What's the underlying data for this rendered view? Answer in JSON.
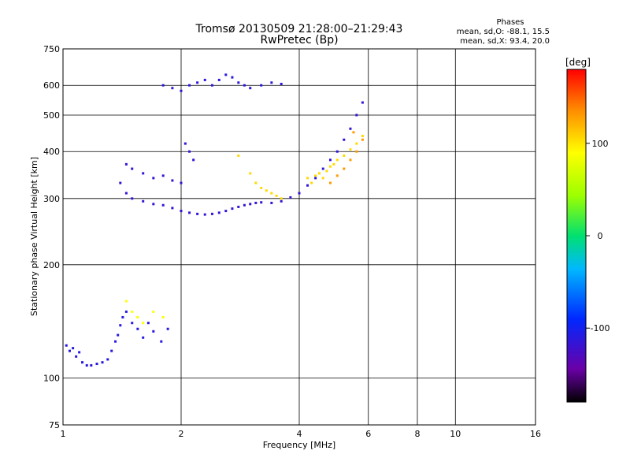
{
  "chart_data": {
    "type": "scatter",
    "title": "Tromsø 20130509 21:28:00–21:29:43",
    "subtitle": "RwPretec (Bp)",
    "xlabel": "Frequency [MHz]",
    "ylabel": "Stationary phase Virtual Height [km]",
    "x_scale": "log",
    "y_scale": "log",
    "xlim": [
      1,
      16
    ],
    "ylim": [
      75,
      750
    ],
    "x_ticks": [
      1,
      2,
      4,
      6,
      8,
      10,
      16
    ],
    "y_ticks": [
      75,
      100,
      200,
      300,
      400,
      500,
      600,
      750
    ],
    "grid": true,
    "legend_position": "top-right",
    "stats": {
      "heading": "Phases",
      "line_o": "mean, sd,O: -88.1, 15.5",
      "line_x": "mean, sd,X:  93.4, 20.0"
    },
    "colorbar": {
      "label": "[deg]",
      "range": [
        -180,
        180
      ],
      "ticks": [
        100,
        0,
        -100
      ]
    },
    "series": [
      {
        "color_value_deg": -110,
        "points": [
          [
            1.02,
            122
          ],
          [
            1.04,
            118
          ],
          [
            1.06,
            120
          ],
          [
            1.08,
            114
          ],
          [
            1.1,
            117
          ],
          [
            1.12,
            110
          ],
          [
            1.15,
            108
          ],
          [
            1.18,
            108
          ],
          [
            1.22,
            109
          ],
          [
            1.26,
            110
          ],
          [
            1.3,
            112
          ],
          [
            1.33,
            118
          ],
          [
            1.36,
            125
          ],
          [
            1.38,
            130
          ],
          [
            1.4,
            138
          ],
          [
            1.42,
            145
          ],
          [
            1.45,
            150
          ],
          [
            1.5,
            140
          ],
          [
            1.55,
            135
          ],
          [
            1.6,
            128
          ],
          [
            1.65,
            140
          ],
          [
            1.7,
            133
          ],
          [
            1.78,
            125
          ],
          [
            1.85,
            135
          ]
        ]
      },
      {
        "color_value_deg": -115,
        "points": [
          [
            1.4,
            330
          ],
          [
            1.45,
            310
          ],
          [
            1.5,
            300
          ],
          [
            1.6,
            295
          ],
          [
            1.7,
            290
          ],
          [
            1.8,
            288
          ],
          [
            1.9,
            283
          ],
          [
            2.0,
            278
          ],
          [
            2.1,
            275
          ],
          [
            2.2,
            273
          ],
          [
            2.3,
            272
          ],
          [
            2.4,
            273
          ],
          [
            2.5,
            275
          ],
          [
            2.6,
            278
          ],
          [
            2.7,
            282
          ],
          [
            2.8,
            285
          ],
          [
            2.9,
            288
          ],
          [
            3.0,
            290
          ],
          [
            3.1,
            292
          ],
          [
            3.2,
            293
          ],
          [
            3.4,
            292
          ],
          [
            3.6,
            295
          ],
          [
            3.8,
            302
          ],
          [
            4.0,
            310
          ],
          [
            4.2,
            325
          ],
          [
            4.4,
            340
          ],
          [
            4.6,
            360
          ],
          [
            4.8,
            380
          ],
          [
            5.0,
            400
          ],
          [
            5.2,
            430
          ],
          [
            5.4,
            460
          ],
          [
            5.6,
            500
          ],
          [
            5.8,
            540
          ],
          [
            1.45,
            370
          ],
          [
            1.5,
            360
          ],
          [
            1.6,
            350
          ],
          [
            1.7,
            340
          ],
          [
            1.8,
            345
          ],
          [
            1.9,
            335
          ],
          [
            2.0,
            330
          ],
          [
            2.05,
            420
          ],
          [
            2.1,
            400
          ],
          [
            2.15,
            380
          ]
        ]
      },
      {
        "color_value_deg": -112,
        "points": [
          [
            1.8,
            600
          ],
          [
            1.9,
            590
          ],
          [
            2.0,
            580
          ],
          [
            2.1,
            600
          ],
          [
            2.2,
            610
          ],
          [
            2.3,
            620
          ],
          [
            2.4,
            600
          ],
          [
            2.5,
            620
          ],
          [
            2.6,
            640
          ],
          [
            2.7,
            630
          ],
          [
            2.8,
            610
          ],
          [
            2.9,
            600
          ],
          [
            3.0,
            590
          ],
          [
            3.2,
            600
          ],
          [
            3.4,
            610
          ],
          [
            3.6,
            605
          ]
        ]
      },
      {
        "color_value_deg": 105,
        "points": [
          [
            2.8,
            390
          ],
          [
            3.0,
            350
          ],
          [
            3.1,
            330
          ],
          [
            3.2,
            320
          ],
          [
            3.3,
            315
          ],
          [
            3.4,
            310
          ],
          [
            3.5,
            305
          ],
          [
            3.6,
            300
          ],
          [
            4.2,
            340
          ],
          [
            4.3,
            330
          ],
          [
            4.4,
            345
          ],
          [
            4.5,
            350
          ],
          [
            4.6,
            340
          ],
          [
            4.7,
            355
          ],
          [
            4.8,
            365
          ],
          [
            4.9,
            370
          ],
          [
            5.0,
            380
          ],
          [
            5.2,
            390
          ],
          [
            5.4,
            405
          ],
          [
            5.6,
            420
          ],
          [
            5.8,
            440
          ]
        ]
      },
      {
        "color_value_deg": 130,
        "points": [
          [
            4.8,
            330
          ],
          [
            5.0,
            345
          ],
          [
            5.2,
            360
          ],
          [
            5.4,
            380
          ],
          [
            5.6,
            400
          ],
          [
            5.8,
            430
          ],
          [
            5.5,
            450
          ]
        ]
      },
      {
        "color_value_deg": 90,
        "points": [
          [
            1.45,
            160
          ],
          [
            1.5,
            150
          ],
          [
            1.55,
            145
          ],
          [
            1.6,
            140
          ],
          [
            1.7,
            150
          ],
          [
            1.8,
            145
          ]
        ]
      }
    ]
  }
}
